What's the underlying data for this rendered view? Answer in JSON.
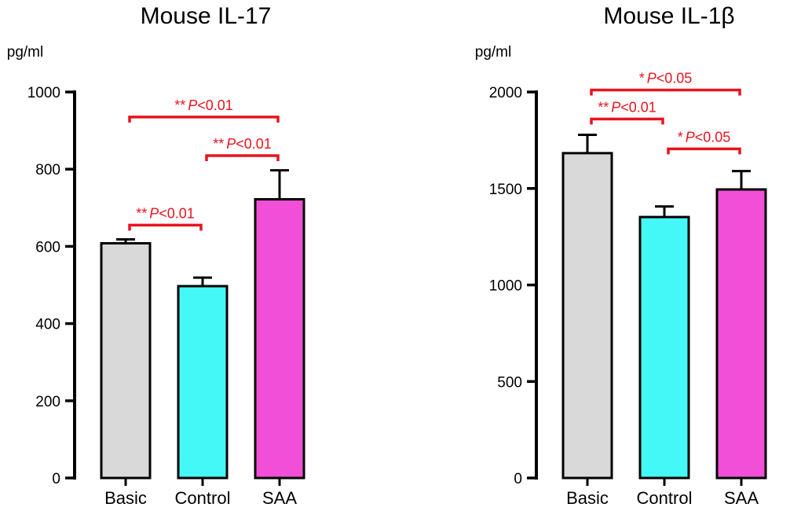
{
  "chart_data": [
    {
      "type": "bar",
      "title": "Mouse IL-17",
      "ylabel": "pg/ml",
      "xlabel": "",
      "categories": [
        "Basic",
        "Control",
        "SAA"
      ],
      "values": [
        608,
        497,
        722
      ],
      "errors": [
        10,
        22,
        75
      ],
      "colors": [
        "#d9d9d9",
        "#44f8f8",
        "#f24fd8"
      ],
      "ylim": [
        0,
        1000
      ],
      "yticks": [
        0,
        200,
        400,
        600,
        800,
        1000
      ],
      "significance": [
        {
          "from": 0,
          "to": 2,
          "stars": "**",
          "p": "P",
          "cmp": "<0.01",
          "y": 935
        },
        {
          "from": 1,
          "to": 2,
          "stars": "**",
          "p": "P",
          "cmp": "<0.01",
          "y": 835
        },
        {
          "from": 0,
          "to": 1,
          "stars": "**",
          "p": "P",
          "cmp": "<0.01",
          "y": 655
        }
      ]
    },
    {
      "type": "bar",
      "title": "Mouse IL-1β",
      "ylabel": "pg/ml",
      "xlabel": "",
      "categories": [
        "Basic",
        "Control",
        "SAA"
      ],
      "values": [
        1683,
        1352,
        1495
      ],
      "errors": [
        95,
        55,
        95
      ],
      "colors": [
        "#d9d9d9",
        "#44f8f8",
        "#f24fd8"
      ],
      "ylim": [
        0,
        2000
      ],
      "yticks": [
        0,
        500,
        1000,
        1500,
        2000
      ],
      "significance": [
        {
          "from": 0,
          "to": 2,
          "stars": "*",
          "p": "P",
          "cmp": "<0.05",
          "y": 2010
        },
        {
          "from": 0,
          "to": 1,
          "stars": "**",
          "p": "P",
          "cmp": "<0.01",
          "y": 1860
        },
        {
          "from": 1,
          "to": 2,
          "stars": "*",
          "p": "P",
          "cmp": "<0.05",
          "y": 1705
        }
      ]
    }
  ],
  "accent": "#e8141e"
}
